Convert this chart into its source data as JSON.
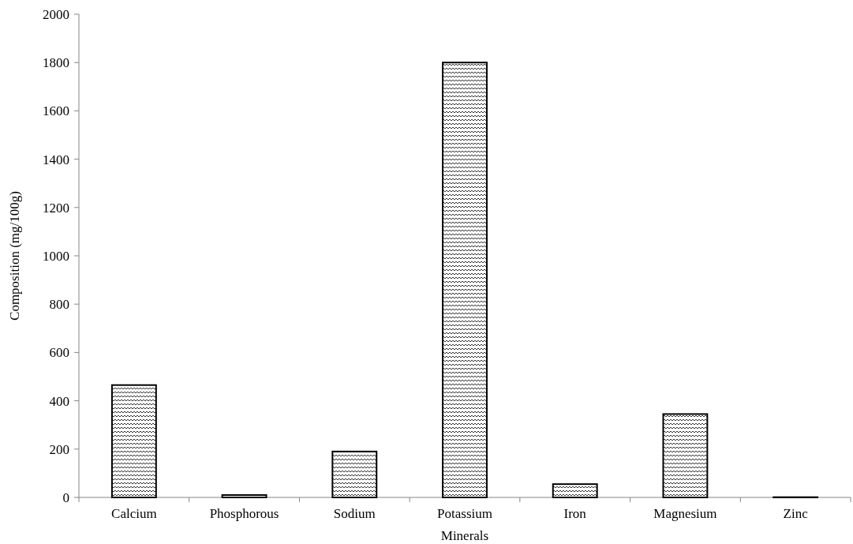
{
  "chart_data": {
    "type": "bar",
    "xlabel": "Minerals",
    "ylabel": "Composition (mg/100g)",
    "categories": [
      "Calcium",
      "Phosphorous",
      "Sodium",
      "Potassium",
      "Iron",
      "Magnesium",
      "Zinc"
    ],
    "values": [
      465,
      10,
      190,
      1800,
      55,
      345,
      1
    ],
    "color": "#000000",
    "ylim": [
      0,
      2000
    ],
    "yticks": [
      0,
      200,
      400,
      600,
      800,
      1000,
      1200,
      1400,
      1600,
      1800,
      2000
    ]
  }
}
